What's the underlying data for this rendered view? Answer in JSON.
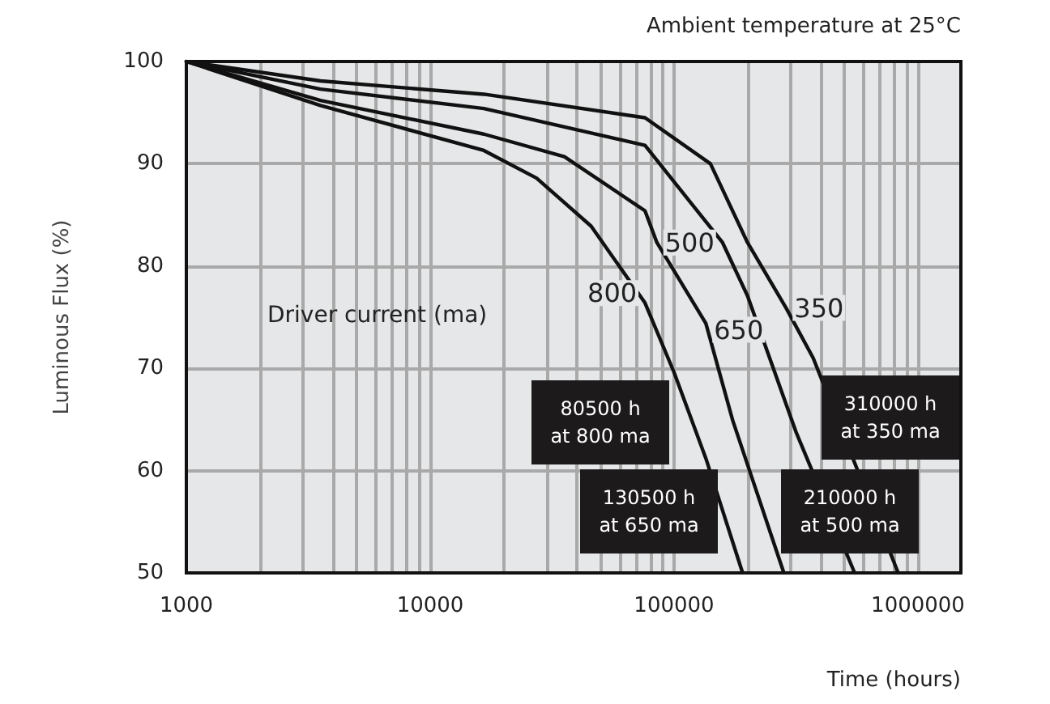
{
  "chart_data": {
    "type": "line",
    "xlabel": "Time (hours)",
    "ylabel": "Luminous Flux (%)",
    "log": "x",
    "xlim": [
      1000,
      1500000
    ],
    "ylim": [
      50,
      100
    ],
    "xticks": [
      1000,
      {
        "value": 2000,
        "label": null
      },
      {
        "value": 3000,
        "label": null
      },
      {
        "value": 4000,
        "label": null
      },
      {
        "value": 5000,
        "label": null
      },
      {
        "value": 6000,
        "label": null
      },
      {
        "value": 7000,
        "label": null
      },
      {
        "value": 8000,
        "label": null
      },
      {
        "value": 9000,
        "label": null
      },
      10000,
      {
        "value": 20000,
        "label": null
      },
      {
        "value": 30000,
        "label": null
      },
      {
        "value": 40000,
        "label": null
      },
      {
        "value": 50000,
        "label": null
      },
      {
        "value": 60000,
        "label": null
      },
      {
        "value": 70000,
        "label": null
      },
      {
        "value": 80000,
        "label": null
      },
      {
        "value": 90000,
        "label": null
      },
      100000,
      {
        "value": 200000,
        "label": null
      },
      {
        "value": 300000,
        "label": null
      },
      {
        "value": 400000,
        "label": null
      },
      {
        "value": 500000,
        "label": null
      },
      {
        "value": 600000,
        "label": null
      },
      {
        "value": 700000,
        "label": null
      },
      {
        "value": 800000,
        "label": null
      },
      {
        "value": 900000,
        "label": null
      },
      1000000
    ],
    "yticks": [
      50,
      60,
      70,
      80,
      90,
      100
    ],
    "grid": true,
    "legend": false,
    "marker": "none",
    "line_style": "solid",
    "series": [
      {
        "name": "800",
        "color": "#111111",
        "x": [
          1000,
          3550,
          16600,
          27300,
          45700,
          76000,
          100000,
          135000,
          191000
        ],
        "values": [
          100,
          95.7,
          91.3,
          88.6,
          83.9,
          76.4,
          69.6,
          61.2,
          50
        ]
      },
      {
        "name": "650",
        "color": "#111111",
        "x": [
          1000,
          3550,
          16600,
          35500,
          76000,
          85000,
          135000,
          174000,
          282000
        ],
        "values": [
          100,
          96.2,
          92.9,
          90.7,
          85.4,
          82.3,
          74.4,
          64.9,
          50
        ]
      },
      {
        "name": "500",
        "color": "#111111",
        "x": [
          1000,
          3550,
          16600,
          76000,
          158000,
          200000,
          316000,
          550000
        ],
        "values": [
          100,
          97.3,
          95.4,
          91.8,
          82.3,
          77.1,
          63.8,
          50
        ]
      },
      {
        "name": "350",
        "color": "#111111",
        "x": [
          1000,
          3550,
          16600,
          76000,
          141000,
          200000,
          288000,
          372000,
          830000
        ],
        "values": [
          100,
          98.1,
          96.8,
          94.5,
          90,
          82.3,
          75.9,
          71,
          50
        ]
      }
    ],
    "annotations": [
      "Ambient temperature at 25°C",
      "Driver current (ma)",
      "80500 h\nat 800 ma",
      "130500 h\nat 650 ma",
      "310000 h\nat 350 ma",
      "210000 h\nat 500 ma"
    ]
  }
}
